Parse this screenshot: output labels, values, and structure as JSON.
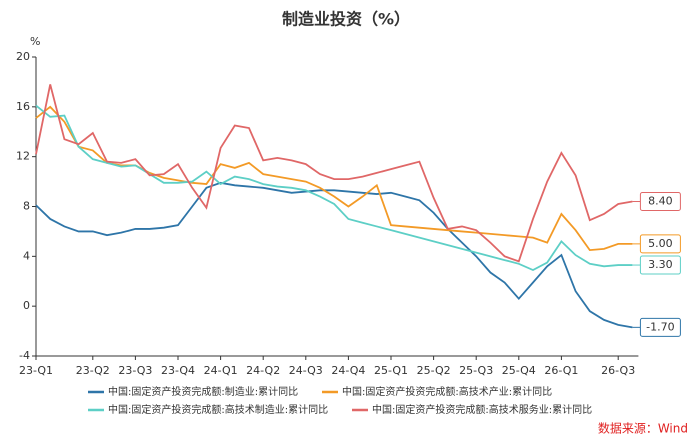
{
  "chart_data": {
    "type": "line",
    "title": "制造业投资（%）",
    "y_unit": "%",
    "source": "数据来源：Wind",
    "categories": [
      "23-Q1",
      null,
      null,
      null,
      "23-Q2",
      null,
      null,
      "23-Q3",
      null,
      null,
      "23-Q4",
      null,
      null,
      "24-Q1",
      null,
      null,
      "24-Q2",
      null,
      null,
      "24-Q3",
      null,
      null,
      "24-Q4",
      null,
      null,
      "25-Q1",
      null,
      null,
      "25-Q2",
      null,
      null,
      "25-Q3",
      null,
      null,
      "25-Q4",
      null,
      null,
      "26-Q1",
      null,
      null,
      null,
      "26-Q3",
      null
    ],
    "ylim": [
      -4,
      20
    ],
    "yticks": [
      -4,
      0,
      4,
      8,
      12,
      16,
      20
    ],
    "grid": false,
    "series": [
      {
        "name": "中国:固定资产投资完成额:制造业:累计同比",
        "color": "#2e75a8",
        "values": [
          8.1,
          7.0,
          6.4,
          6.0,
          6.0,
          5.7,
          5.9,
          6.2,
          6.2,
          6.3,
          6.5,
          8.0,
          9.5,
          9.9,
          9.7,
          9.6,
          9.5,
          9.3,
          9.1,
          9.2,
          9.3,
          9.3,
          9.2,
          9.1,
          9.0,
          9.1,
          8.8,
          8.5,
          7.5,
          6.2,
          5.1,
          4.0,
          2.7,
          1.9,
          0.6,
          1.9,
          3.2,
          4.1,
          1.2,
          -0.4,
          -1.1,
          -1.5,
          -1.7
        ],
        "value_labels": [
          null,
          null,
          null,
          null,
          null,
          null,
          null,
          null,
          null,
          null,
          null,
          null,
          null,
          null,
          null,
          null,
          null,
          null,
          null,
          null,
          null,
          null,
          null,
          null,
          null,
          null,
          null,
          null,
          null,
          null,
          null,
          null,
          null,
          null,
          null,
          null,
          null,
          null,
          null,
          null,
          null,
          null,
          "-1.70"
        ]
      },
      {
        "name": "中国:固定资产投资完成额:高技术产业:累计同比",
        "color": "#f39a26",
        "values": [
          15.1,
          16.0,
          14.8,
          12.8,
          12.5,
          11.5,
          11.3,
          11.3,
          10.7,
          10.3,
          10.1,
          9.9,
          9.8,
          11.4,
          11.1,
          11.5,
          10.6,
          10.4,
          10.2,
          10.0,
          9.5,
          8.8,
          8.0,
          8.8,
          9.7,
          6.5,
          6.4,
          6.3,
          6.2,
          6.1,
          6.0,
          5.9,
          5.8,
          5.7,
          5.6,
          5.5,
          5.1,
          7.4,
          6.1,
          4.5,
          4.6,
          5.0,
          5.0
        ],
        "value_labels": [
          null,
          null,
          null,
          null,
          null,
          null,
          null,
          null,
          null,
          null,
          null,
          null,
          null,
          null,
          null,
          null,
          null,
          null,
          null,
          null,
          null,
          null,
          null,
          null,
          null,
          null,
          null,
          null,
          null,
          null,
          null,
          null,
          null,
          null,
          null,
          null,
          null,
          null,
          null,
          null,
          null,
          null,
          "5.00"
        ]
      },
      {
        "name": "中国:固定资产投资完成额:高技术制造业:累计同比",
        "color": "#5dcfc6",
        "values": [
          16.1,
          15.2,
          15.3,
          12.8,
          11.8,
          11.5,
          11.2,
          11.3,
          10.6,
          9.9,
          9.9,
          10.0,
          10.8,
          9.8,
          10.4,
          10.2,
          9.8,
          9.6,
          9.5,
          9.3,
          8.8,
          8.2,
          7.0,
          6.7,
          6.4,
          6.1,
          5.8,
          5.5,
          5.2,
          4.9,
          4.6,
          4.3,
          4.0,
          3.7,
          3.4,
          2.9,
          3.5,
          5.2,
          4.1,
          3.4,
          3.2,
          3.3,
          3.3
        ],
        "value_labels": [
          null,
          null,
          null,
          null,
          null,
          null,
          null,
          null,
          null,
          null,
          null,
          null,
          null,
          null,
          null,
          null,
          null,
          null,
          null,
          null,
          null,
          null,
          null,
          null,
          null,
          null,
          null,
          null,
          null,
          null,
          null,
          null,
          null,
          null,
          null,
          null,
          null,
          null,
          null,
          null,
          null,
          null,
          "3.30"
        ]
      },
      {
        "name": "中国:固定资产投资完成额:高技术服务业:累计同比",
        "color": "#e06767",
        "values": [
          12.2,
          17.8,
          13.4,
          13.0,
          13.9,
          11.6,
          11.5,
          11.8,
          10.5,
          10.6,
          11.4,
          9.5,
          7.9,
          12.7,
          14.5,
          14.3,
          11.7,
          11.9,
          11.7,
          11.4,
          10.6,
          10.2,
          10.2,
          10.4,
          10.7,
          11.0,
          11.3,
          11.6,
          8.7,
          6.2,
          6.4,
          6.1,
          5.1,
          4.0,
          3.6,
          7.0,
          10.0,
          12.3,
          10.5,
          6.9,
          7.4,
          8.2,
          8.4
        ],
        "value_labels": [
          null,
          null,
          null,
          null,
          null,
          null,
          null,
          null,
          null,
          null,
          null,
          null,
          null,
          null,
          null,
          null,
          null,
          null,
          null,
          null,
          null,
          null,
          null,
          null,
          null,
          null,
          null,
          null,
          null,
          null,
          null,
          null,
          null,
          null,
          null,
          null,
          null,
          null,
          null,
          null,
          null,
          null,
          "8.40"
        ]
      }
    ]
  }
}
